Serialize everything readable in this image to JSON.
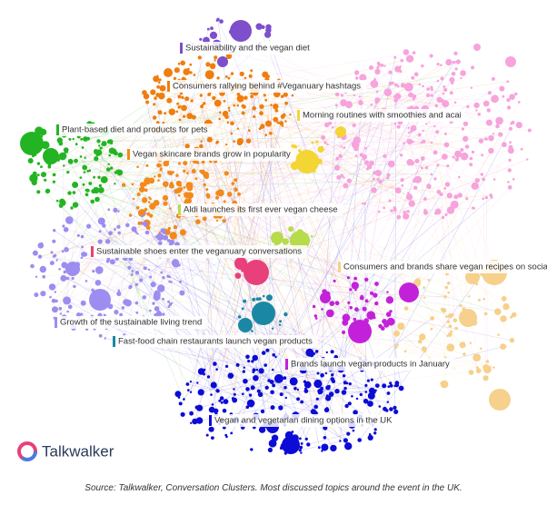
{
  "clusters": [
    {
      "label": "Sustainability and the vegan diet",
      "color": "#7d4fcc"
    },
    {
      "label": "Consumers rallying behind #Veganuary hashtags",
      "color": "#f07d0e"
    },
    {
      "label": "Morning routines with smoothies and acai",
      "color": "#f3d534"
    },
    {
      "label": "Plant-based diet and products for pets",
      "color": "#23b423"
    },
    {
      "label": "Vegan skincare brands grow in popularity",
      "color": "#f28a1c"
    },
    {
      "label": "Aldi launches its first ever vegan cheese",
      "color": "#b6dc4c"
    },
    {
      "label": "Sustainable shoes enter the veganuary conversations",
      "color": "#e8407a"
    },
    {
      "label": "Consumers and brands share vegan recipes on social",
      "color": "#f6d08c"
    },
    {
      "label": "Growth of the sustainable living trend",
      "color": "#9d8df0"
    },
    {
      "label": "Fast-food chain restaurants launch vegan products",
      "color": "#1a88a4"
    },
    {
      "label": "Brands launch vegan products in January",
      "color": "#c321d9"
    },
    {
      "label": "Vegan and vegetarian dining options in the UK",
      "color": "#0c0cd6"
    }
  ],
  "extra_nodes_color": "#f7a3dc",
  "logo": "Talkwalker",
  "caption": "Source: Talkwalker, Conversation Clusters. Most discussed topics  around the event in the UK."
}
